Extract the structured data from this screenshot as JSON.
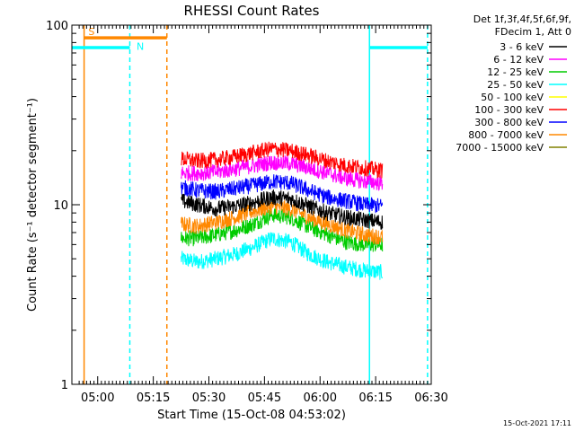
{
  "chart_data": {
    "type": "line",
    "title": "RHESSI Count Rates",
    "xlabel": "Start Time (15-Oct-08 04:53:02)",
    "ylabel": "Count Rate (s⁻¹ detector segment⁻¹)",
    "yscale": "log",
    "ylim": [
      1,
      100
    ],
    "xlim": [
      "04:53:02",
      "06:30:00"
    ],
    "x_ticks": [
      "05:00",
      "05:15",
      "05:30",
      "05:45",
      "06:00",
      "06:15",
      "06:30"
    ],
    "y_ticks": [
      "1",
      "10",
      "100"
    ],
    "grid": false,
    "legend_position": "right",
    "legend_header": [
      "Det 1f,3f,4f,5f,6f,9f,",
      "FDecim 1, Att 0"
    ],
    "series": [
      {
        "name": "3 - 6 keV",
        "color": "#000000",
        "x": [
          "05:22:30",
          "05:27:00",
          "05:32:00",
          "05:37:00",
          "05:42:00",
          "05:47:00",
          "05:52:00",
          "05:57:00",
          "06:02:00",
          "06:07:00",
          "06:12:00",
          "06:16:50"
        ],
        "values": [
          10.5,
          10.0,
          9.5,
          9.8,
          10.3,
          11.0,
          10.8,
          9.8,
          9.0,
          8.5,
          8.2,
          8.0
        ]
      },
      {
        "name": "6 - 12 keV",
        "color": "#ff00ff",
        "x": [
          "05:22:30",
          "05:27:00",
          "05:32:00",
          "05:37:00",
          "05:42:00",
          "05:47:00",
          "05:52:00",
          "05:57:00",
          "06:02:00",
          "06:07:00",
          "06:12:00",
          "06:16:50"
        ],
        "values": [
          15.0,
          15.0,
          15.2,
          15.8,
          16.5,
          17.2,
          17.0,
          16.0,
          15.0,
          14.0,
          13.5,
          13.2
        ]
      },
      {
        "name": "12 - 25 keV",
        "color": "#00cc00",
        "x": [
          "05:22:30",
          "05:27:00",
          "05:32:00",
          "05:37:00",
          "05:42:00",
          "05:47:00",
          "05:52:00",
          "05:57:00",
          "06:02:00",
          "06:07:00",
          "06:12:00",
          "06:16:50"
        ],
        "values": [
          6.5,
          6.5,
          6.8,
          7.2,
          7.8,
          8.8,
          8.5,
          7.5,
          6.8,
          6.2,
          6.0,
          6.0
        ]
      },
      {
        "name": "25 - 50 keV",
        "color": "#00ffff",
        "x": [
          "05:22:30",
          "05:27:00",
          "05:32:00",
          "05:37:00",
          "05:42:00",
          "05:47:00",
          "05:52:00",
          "05:57:00",
          "06:02:00",
          "06:07:00",
          "06:12:00",
          "06:16:50"
        ],
        "values": [
          5.0,
          4.8,
          5.0,
          5.3,
          5.8,
          6.5,
          6.2,
          5.3,
          4.8,
          4.5,
          4.3,
          4.2
        ]
      },
      {
        "name": "50 - 100 keV",
        "color": "#ffff00",
        "x": [],
        "values": []
      },
      {
        "name": "100 - 300 keV",
        "color": "#ff0000",
        "x": [
          "05:22:30",
          "05:27:00",
          "05:32:00",
          "05:37:00",
          "05:42:00",
          "05:47:00",
          "05:52:00",
          "05:57:00",
          "06:02:00",
          "06:07:00",
          "06:12:00",
          "06:16:50"
        ],
        "values": [
          18.0,
          17.5,
          17.8,
          18.5,
          19.5,
          20.5,
          20.0,
          18.8,
          17.5,
          16.5,
          16.0,
          15.5
        ]
      },
      {
        "name": "300 - 800 keV",
        "color": "#0000ff",
        "x": [
          "05:22:30",
          "05:27:00",
          "05:32:00",
          "05:37:00",
          "05:42:00",
          "05:47:00",
          "05:52:00",
          "05:57:00",
          "06:02:00",
          "06:07:00",
          "06:12:00",
          "06:16:50"
        ],
        "values": [
          12.5,
          12.0,
          11.8,
          12.3,
          12.8,
          13.5,
          13.2,
          12.0,
          11.0,
          10.5,
          10.0,
          9.8
        ]
      },
      {
        "name": "800 - 7000 keV",
        "color": "#ff8800",
        "x": [
          "05:22:30",
          "05:27:00",
          "05:32:00",
          "05:37:00",
          "05:42:00",
          "05:47:00",
          "05:52:00",
          "05:57:00",
          "06:02:00",
          "06:07:00",
          "06:12:00",
          "06:16:50"
        ],
        "values": [
          7.8,
          7.6,
          8.0,
          8.5,
          9.2,
          9.8,
          9.5,
          8.5,
          7.8,
          7.2,
          6.8,
          6.6
        ]
      },
      {
        "name": "7000 - 15000 keV",
        "color": "#808000",
        "x": [],
        "values": []
      }
    ],
    "annotations": [
      {
        "type": "vline",
        "x": "04:56:20",
        "color": "#ff8800",
        "style": "solid"
      },
      {
        "type": "vline",
        "x": "05:08:40",
        "color": "#00ffff",
        "style": "dashed"
      },
      {
        "type": "vline",
        "x": "05:18:40",
        "color": "#ff8800",
        "style": "dashed"
      },
      {
        "type": "vline",
        "x": "06:13:20",
        "color": "#00ffff",
        "style": "solid"
      },
      {
        "type": "vline",
        "x": "06:29:00",
        "color": "#00ffff",
        "style": "dashed"
      },
      {
        "type": "bar",
        "x0": "04:53:02",
        "x1": "05:08:40",
        "y": 75,
        "color": "#00ffff"
      },
      {
        "type": "bar",
        "x0": "04:56:20",
        "x1": "05:18:40",
        "y": 85,
        "color": "#ff8800"
      },
      {
        "type": "bar",
        "x0": "06:13:20",
        "x1": "06:29:00",
        "y": 75,
        "color": "#00ffff"
      },
      {
        "type": "label",
        "text": "S",
        "x": "04:57:30",
        "y": 88,
        "color": "#ff8800"
      },
      {
        "type": "label",
        "text": "N",
        "x": "05:10:30",
        "y": 73,
        "color": "#00ffff"
      }
    ]
  },
  "footer": {
    "timestamp": "15-Oct-2021 17:11"
  }
}
